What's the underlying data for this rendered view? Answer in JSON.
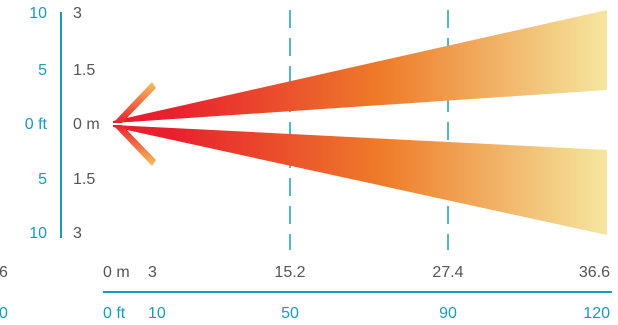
{
  "vertical_scale": {
    "feet_labels": [
      "10",
      "5",
      "0 ft",
      "5",
      "10"
    ],
    "meter_labels": [
      "3",
      "1.5",
      "0 m",
      "1.5",
      "3"
    ]
  },
  "horizontal_scale": {
    "meter_labels": [
      "0 m",
      "3",
      "15.2",
      "27.4",
      "36.6"
    ],
    "feet_labels": [
      "0 ft",
      "10",
      "50",
      "90",
      "120"
    ]
  },
  "left_cutoff_labels": {
    "meter_fragment": "6",
    "feet_fragment": "0"
  },
  "colors": {
    "axis": "#1a9bb8",
    "feet_text": "#1a9bb8",
    "meter_text": "#555555",
    "beam_near": "#e8202e",
    "beam_mid": "#ee7d2a",
    "beam_far": "#f5e6a0"
  }
}
